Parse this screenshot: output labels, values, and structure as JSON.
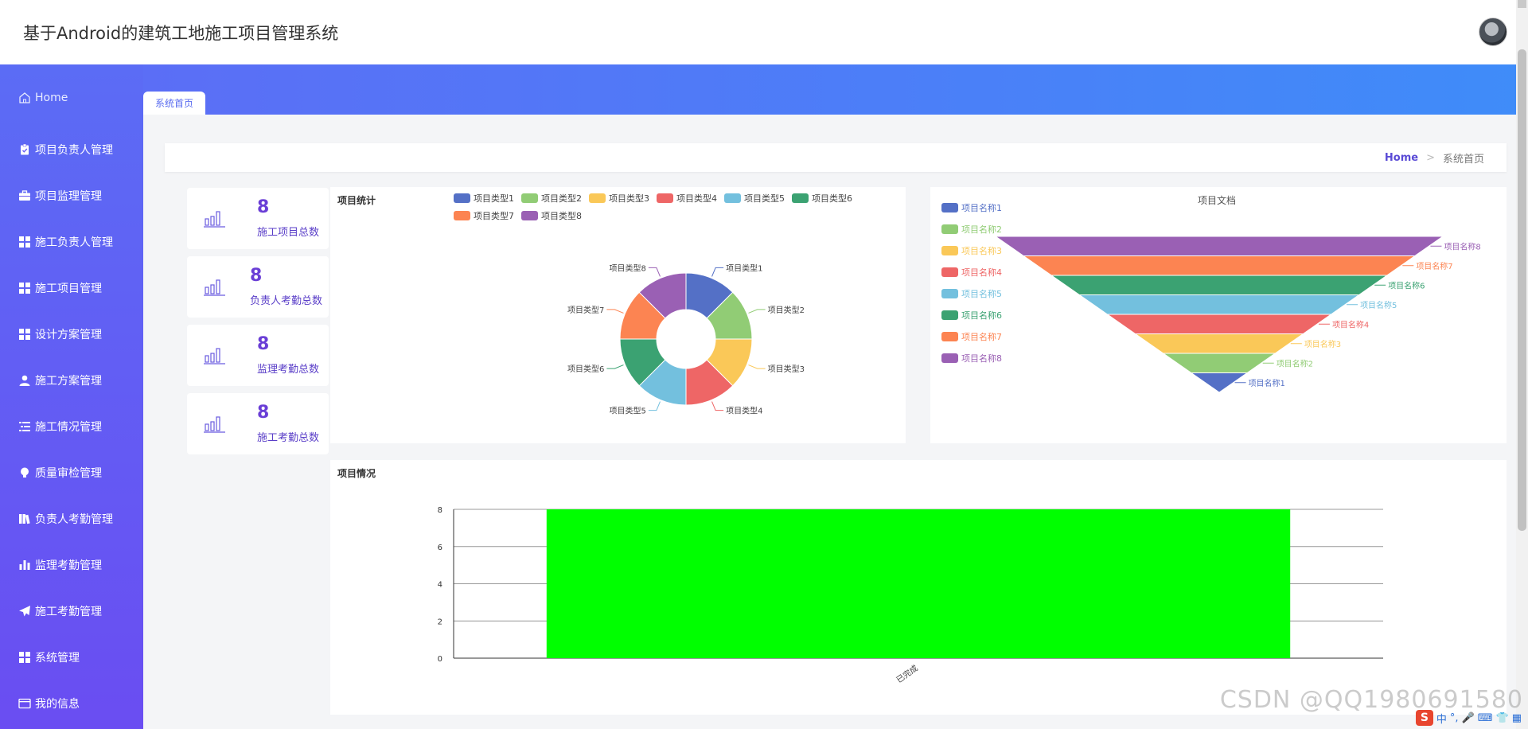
{
  "header": {
    "title": "基于Android的建筑工地施工项目管理系统"
  },
  "sidebar": {
    "items": [
      {
        "label": "Home",
        "icon": "home-icon"
      },
      {
        "label": "项目负责人管理",
        "icon": "clipboard-icon"
      },
      {
        "label": "项目监理管理",
        "icon": "briefcase-icon"
      },
      {
        "label": "施工负责人管理",
        "icon": "grid-icon"
      },
      {
        "label": "施工项目管理",
        "icon": "grid-icon"
      },
      {
        "label": "设计方案管理",
        "icon": "grid-icon"
      },
      {
        "label": "施工方案管理",
        "icon": "user-icon"
      },
      {
        "label": "施工情况管理",
        "icon": "list-icon"
      },
      {
        "label": "质量审检管理",
        "icon": "bulb-icon"
      },
      {
        "label": "负责人考勤管理",
        "icon": "books-icon"
      },
      {
        "label": "监理考勤管理",
        "icon": "bar-chart-icon"
      },
      {
        "label": "施工考勤管理",
        "icon": "paper-plane-icon"
      },
      {
        "label": "系统管理",
        "icon": "grid-icon"
      },
      {
        "label": "我的信息",
        "icon": "card-icon"
      }
    ]
  },
  "tabs": [
    {
      "label": "系统首页"
    }
  ],
  "breadcrumb": {
    "home": "Home",
    "separator": ">",
    "current": "系统首页"
  },
  "stats": [
    {
      "value": "8",
      "label": "施工项目总数"
    },
    {
      "value": "8",
      "label": "负责人考勤总数"
    },
    {
      "value": "8",
      "label": "监理考勤总数"
    },
    {
      "value": "8",
      "label": "施工考勤总数"
    }
  ],
  "colors": {
    "palette": [
      "#5470c6",
      "#91cc75",
      "#fac858",
      "#ee6666",
      "#73c0de",
      "#3ba272",
      "#fc8452",
      "#9a60b4"
    ],
    "bar": "#00ff00",
    "accent": "#6a3ed6"
  },
  "chart_data": [
    {
      "type": "pie",
      "title": "项目统计",
      "categories": [
        "项目类型1",
        "项目类型2",
        "项目类型3",
        "项目类型4",
        "项目类型5",
        "项目类型6",
        "项目类型7",
        "项目类型8"
      ],
      "values": [
        1,
        1,
        1,
        1,
        1,
        1,
        1,
        1
      ],
      "legend": "top-right"
    },
    {
      "type": "funnel",
      "title": "项目文档",
      "categories": [
        "项目名称1",
        "项目名称2",
        "项目名称3",
        "项目名称4",
        "项目名称5",
        "项目名称6",
        "项目名称7",
        "项目名称8"
      ],
      "values": [
        1,
        2,
        3,
        4,
        5,
        6,
        7,
        8
      ],
      "legend": "left"
    },
    {
      "type": "bar",
      "title": "项目情况",
      "categories": [
        "已完成"
      ],
      "values": [
        8
      ],
      "ylim": [
        0,
        8
      ],
      "yticks": [
        0,
        2,
        4,
        6,
        8
      ],
      "grid": true
    }
  ],
  "watermark": "CSDN @QQ1980691580",
  "tray": {
    "ime": "中",
    "symbols": "°,"
  }
}
